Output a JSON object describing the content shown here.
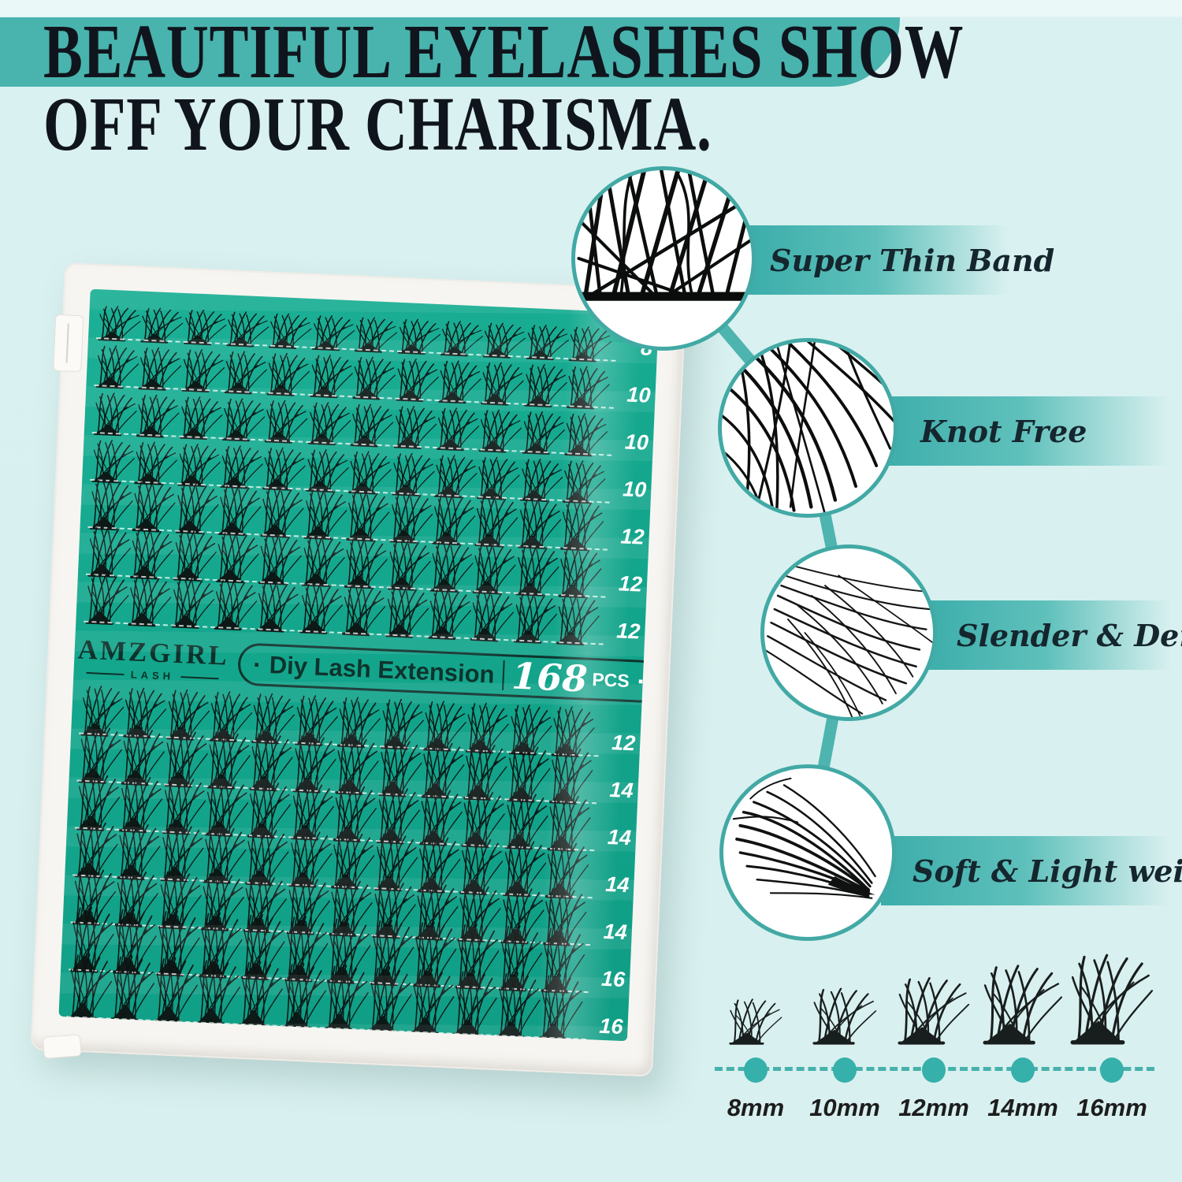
{
  "heading": {
    "line1": "BEAUTIFUL EYELASHES SHOW",
    "line2": "OFF YOUR CHARISMA."
  },
  "tray": {
    "brand": "AMZGIRL",
    "brand_sub": "LASH",
    "pill_dot_left": "·",
    "pill_label": "Diy Lash Extension",
    "pill_count": "168",
    "pill_unit": "PCS",
    "pill_dot_right": "·",
    "rows_top": [
      "8",
      "10",
      "10",
      "10",
      "12",
      "12",
      "12"
    ],
    "rows_bottom": [
      "12",
      "14",
      "14",
      "14",
      "14",
      "16",
      "16"
    ],
    "clusters_per_row": 12
  },
  "callouts": [
    {
      "label": "Super Thin Band"
    },
    {
      "label": "Knot Free"
    },
    {
      "label": "Slender & Dense"
    },
    {
      "label": "Soft & Light weight"
    }
  ],
  "size_chart": {
    "sizes": [
      "8mm",
      "10mm",
      "12mm",
      "14mm",
      "16mm"
    ]
  },
  "colors": {
    "background": "#d9f1f0",
    "accent_teal": "#49b3ae",
    "tray_green": "#14a78d",
    "heading_text": "#10151d",
    "label_text": "#15262e",
    "row_number_text": "#ffffff"
  }
}
